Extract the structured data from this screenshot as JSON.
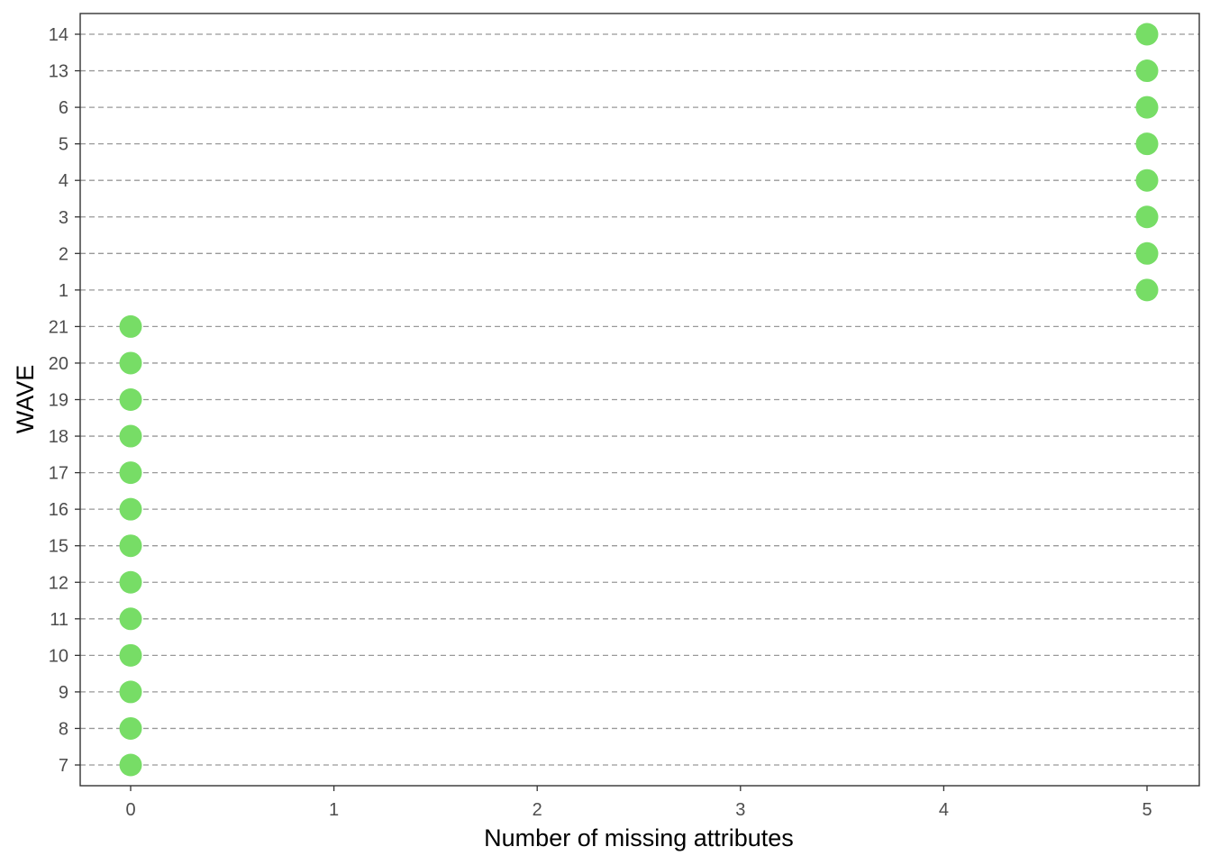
{
  "chart_data": {
    "type": "scatter",
    "title": "",
    "xlabel": "Number of missing attributes",
    "ylabel": "WAVE",
    "xlim": [
      0,
      5
    ],
    "x_ticks": [
      0,
      1,
      2,
      3,
      4,
      5
    ],
    "y_categories": [
      "7",
      "8",
      "9",
      "10",
      "11",
      "12",
      "15",
      "16",
      "17",
      "18",
      "19",
      "20",
      "21",
      "1",
      "2",
      "3",
      "4",
      "5",
      "6",
      "13",
      "14"
    ],
    "points": [
      {
        "wave": "7",
        "x": 0
      },
      {
        "wave": "8",
        "x": 0
      },
      {
        "wave": "9",
        "x": 0
      },
      {
        "wave": "10",
        "x": 0
      },
      {
        "wave": "11",
        "x": 0
      },
      {
        "wave": "12",
        "x": 0
      },
      {
        "wave": "15",
        "x": 0
      },
      {
        "wave": "16",
        "x": 0
      },
      {
        "wave": "17",
        "x": 0
      },
      {
        "wave": "18",
        "x": 0
      },
      {
        "wave": "19",
        "x": 0
      },
      {
        "wave": "20",
        "x": 0
      },
      {
        "wave": "21",
        "x": 0
      },
      {
        "wave": "1",
        "x": 5
      },
      {
        "wave": "2",
        "x": 5
      },
      {
        "wave": "3",
        "x": 5
      },
      {
        "wave": "4",
        "x": 5
      },
      {
        "wave": "5",
        "x": 5
      },
      {
        "wave": "6",
        "x": 5
      },
      {
        "wave": "13",
        "x": 5
      },
      {
        "wave": "14",
        "x": 5
      }
    ],
    "grid": "horizontal dashed",
    "point_color": "#77dd66",
    "gridline_color": "#999999"
  }
}
